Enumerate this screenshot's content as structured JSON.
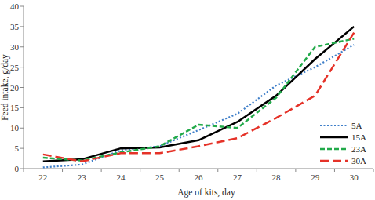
{
  "chart_data": {
    "type": "line",
    "x_label": "Age of kits, day",
    "y_label": "Feed intake, g/day",
    "categories": [
      "22",
      "23",
      "24",
      "25",
      "26",
      "27",
      "28",
      "29",
      "30"
    ],
    "series": [
      {
        "name": "5A",
        "color": "#3f7fc9",
        "line_style": "dotted",
        "values": [
          0.3,
          1,
          4.5,
          5.5,
          9.5,
          13.5,
          20.5,
          25,
          30.5
        ]
      },
      {
        "name": "15A",
        "color": "#000000",
        "line_style": "solid",
        "values": [
          1.8,
          2.3,
          5,
          5.2,
          7,
          11.5,
          18,
          27,
          35
        ]
      },
      {
        "name": "23A",
        "color": "#22aa4a",
        "line_style": "dashed",
        "values": [
          2.7,
          2,
          4,
          5.5,
          10.8,
          10,
          17.5,
          30,
          32
        ]
      },
      {
        "name": "30A",
        "color": "#e53228",
        "line_style": "long_dash",
        "values": [
          3.5,
          1.8,
          3.8,
          3.8,
          5.5,
          7.5,
          12.5,
          18,
          33.5
        ]
      }
    ],
    "ylim": [
      0,
      40
    ],
    "yticks": [
      0,
      5,
      10,
      15,
      20,
      25,
      30,
      35,
      40
    ],
    "grid": false,
    "legend": "lower right"
  }
}
